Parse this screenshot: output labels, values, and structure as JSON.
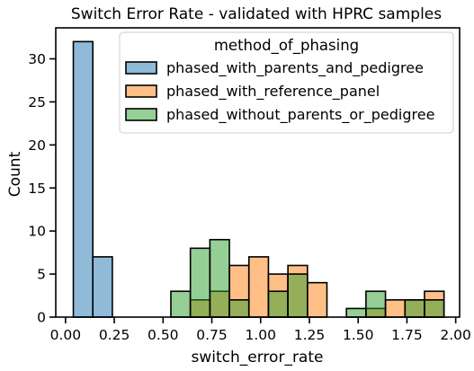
{
  "chart_data": {
    "type": "bar",
    "subtype": "histogram-overlay",
    "title": "Switch Error Rate - validated with HPRC samples",
    "xlabel": "switch_error_rate",
    "ylabel": "Count",
    "xlim": [
      -0.05,
      2.02
    ],
    "ylim": [
      0,
      33.6
    ],
    "xticks": [
      "0.00",
      "0.25",
      "0.50",
      "0.75",
      "1.00",
      "1.25",
      "1.50",
      "1.75",
      "2.00"
    ],
    "xtick_values": [
      0,
      0.25,
      0.5,
      0.75,
      1.0,
      1.25,
      1.5,
      1.75,
      2.0
    ],
    "yticks": [
      "0",
      "5",
      "10",
      "15",
      "20",
      "25",
      "30"
    ],
    "ytick_values": [
      0,
      5,
      10,
      15,
      20,
      25,
      30
    ],
    "bin_width": 0.1,
    "bin_edges": [
      0.04,
      0.14,
      0.24,
      0.34,
      0.44,
      0.54,
      0.64,
      0.74,
      0.84,
      0.94,
      1.04,
      1.14,
      1.24,
      1.34,
      1.44,
      1.54,
      1.64,
      1.74,
      1.84,
      1.94
    ],
    "legend": {
      "title": "method_of_phasing",
      "placement": "top-right"
    },
    "grid": false,
    "series": [
      {
        "name": "phased_with_parents_and_pedigree",
        "color": "#1f77b4",
        "values": [
          32,
          7,
          0,
          0,
          0,
          0,
          0,
          0,
          0,
          0,
          0,
          0,
          0,
          0,
          0,
          0,
          0,
          0,
          0
        ]
      },
      {
        "name": "phased_with_reference_panel",
        "color": "#ff7f0e",
        "values": [
          0,
          0,
          0,
          0,
          0,
          0,
          2,
          3,
          6,
          7,
          5,
          6,
          4,
          0,
          0,
          1,
          2,
          2,
          3
        ]
      },
      {
        "name": "phased_without_parents_or_pedigree",
        "color": "#2ca02c",
        "values": [
          0,
          0,
          0,
          0,
          0,
          3,
          8,
          9,
          2,
          0,
          3,
          5,
          0,
          0,
          1,
          3,
          0,
          2,
          2
        ]
      }
    ]
  }
}
